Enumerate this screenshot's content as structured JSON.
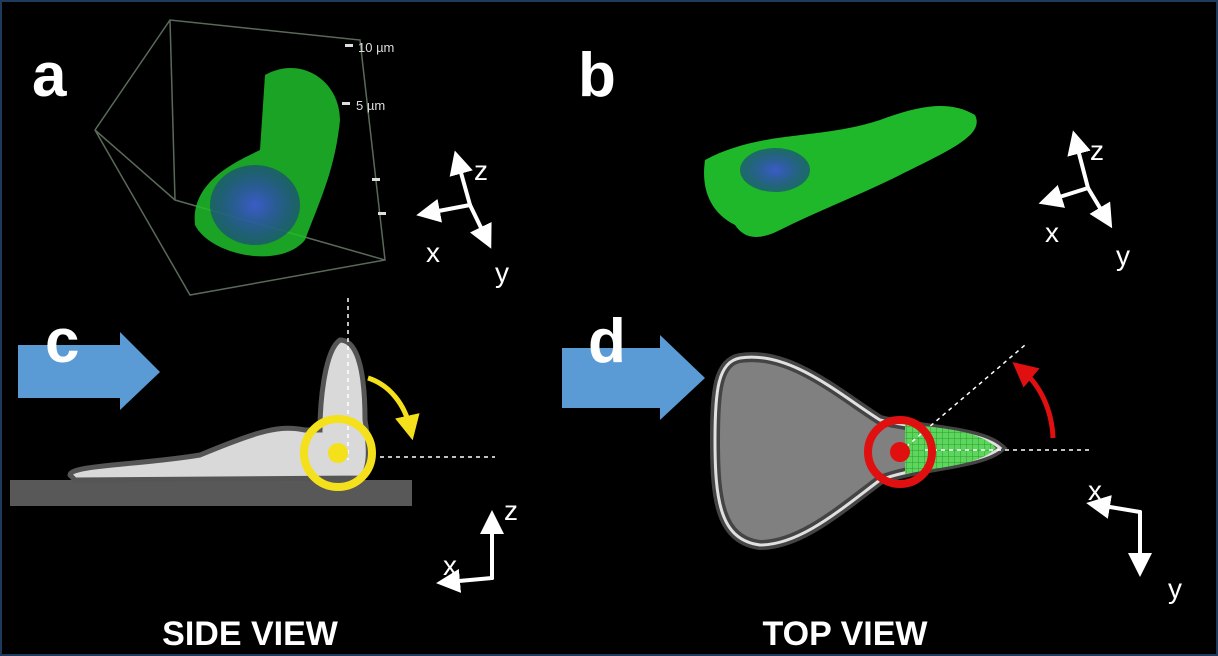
{
  "panels": [
    {
      "label": "a",
      "scale_labels": [
        "10 µm",
        "5 µm"
      ],
      "axes": [
        "z",
        "x",
        "y"
      ]
    },
    {
      "label": "b",
      "axes": [
        "z",
        "x",
        "y"
      ]
    },
    {
      "label": "c",
      "axes": [
        "z",
        "x"
      ],
      "caption": "SIDE VIEW"
    },
    {
      "label": "d",
      "axes": [
        "x",
        "y"
      ],
      "caption": "TOP VIEW"
    }
  ]
}
